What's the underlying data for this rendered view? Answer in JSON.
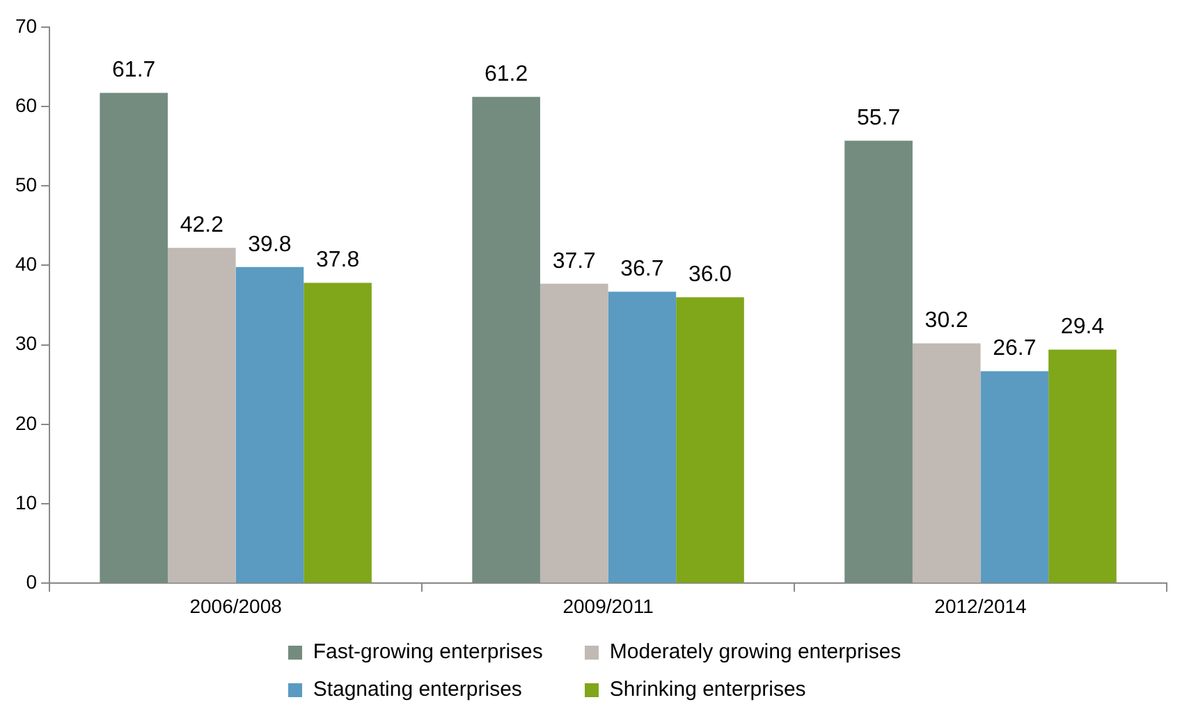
{
  "chart_data": {
    "type": "bar",
    "categories": [
      "2006/2008",
      "2009/2011",
      "2012/2014"
    ],
    "series": [
      {
        "name": "Fast-growing enterprises",
        "color": "#738c7f",
        "values": [
          61.7,
          61.2,
          55.7
        ],
        "value_labels": [
          "61.7",
          "61.2",
          "55.7"
        ]
      },
      {
        "name": "Moderately growing enterprises",
        "color": "#c0b9b4",
        "values": [
          42.2,
          37.7,
          30.2
        ],
        "value_labels": [
          "42.2",
          "37.7",
          "30.2"
        ]
      },
      {
        "name": "Stagnating enterprises",
        "color": "#5b9bc1",
        "values": [
          39.8,
          36.7,
          26.7
        ],
        "value_labels": [
          "39.8",
          "36.7",
          "26.7"
        ]
      },
      {
        "name": "Shrinking enterprises",
        "color": "#80a61a",
        "values": [
          37.8,
          36.0,
          29.4
        ],
        "value_labels": [
          "37.8",
          "36.0",
          "29.4"
        ]
      }
    ],
    "ylim": [
      0,
      70
    ],
    "yticks": [
      0,
      10,
      20,
      30,
      40,
      50,
      60,
      70
    ],
    "grid": false,
    "legend": "bottom"
  }
}
